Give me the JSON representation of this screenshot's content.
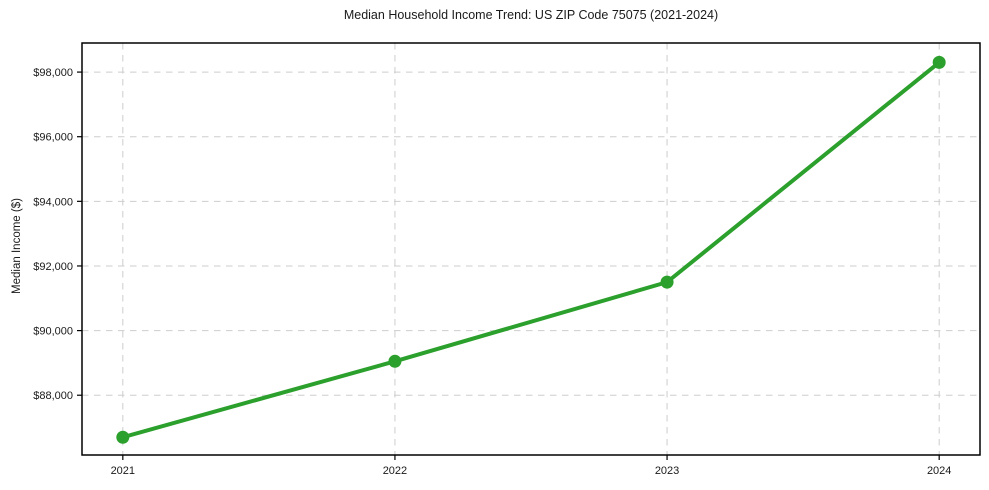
{
  "figure": {
    "title": "Median Household Income Trend: US ZIP Code 75075 (2021-2024)",
    "ylabel": "Median Income ($)"
  },
  "chart_data": {
    "type": "line",
    "title": "Median Household Income Trend: US ZIP Code 75075 (2021-2024)",
    "xlabel": "",
    "ylabel": "Median Income ($)",
    "x": [
      2021,
      2022,
      2023,
      2024
    ],
    "x_labels": [
      "2021",
      "2022",
      "2023",
      "2024"
    ],
    "series": [
      {
        "name": "Median Household Income",
        "values": [
          86700,
          89050,
          91500,
          98300
        ]
      }
    ],
    "xlim": [
      2020.85,
      2024.15
    ],
    "ylim": [
      86150,
      98900
    ],
    "yticks": [
      88000,
      90000,
      92000,
      94000,
      96000,
      98000
    ],
    "ytick_labels": [
      "$88,000",
      "$90,000",
      "$92,000",
      "$94,000",
      "$96,000",
      "$98,000"
    ],
    "grid": true,
    "grid_style": "dashed",
    "legend": false,
    "colors": {
      "line": "#2ca02c",
      "marker": "#2ca02c",
      "grid": "#cdcdcd",
      "spine": "#000000",
      "text": "#1a1a1a",
      "background": "#ffffff"
    }
  }
}
